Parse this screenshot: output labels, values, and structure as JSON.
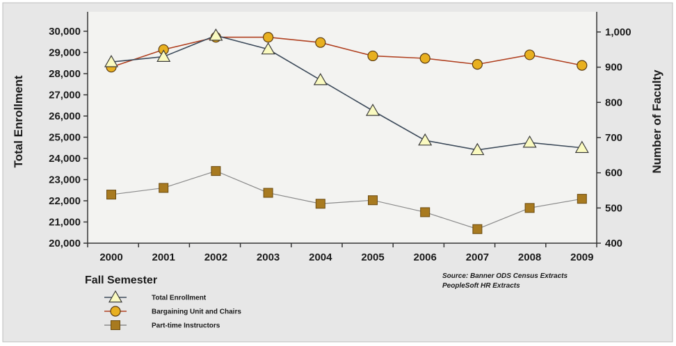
{
  "chart_data": {
    "type": "line",
    "categories": [
      "2000",
      "2001",
      "2002",
      "2003",
      "2004",
      "2005",
      "2006",
      "2007",
      "2008",
      "2009"
    ],
    "xlabel": "Fall Semester",
    "ylabel_left": "Total Enrollment",
    "ylabel_right": "Number of Faculty",
    "ylim_left": [
      20000,
      30000
    ],
    "ylim_right": [
      400,
      1000
    ],
    "yticks_left": [
      "20,000",
      "21,000",
      "22,000",
      "23,000",
      "24,000",
      "25,000",
      "26,000",
      "27,000",
      "28,000",
      "29,000",
      "30,000"
    ],
    "yticks_right": [
      "400",
      "500",
      "600",
      "700",
      "800",
      "900",
      "1,000"
    ],
    "grid": false,
    "legend_position": "bottom-left",
    "background_color": "#e7e7e7",
    "plot_background_color": "#f3f3f1",
    "series": [
      {
        "name": "Total Enrollment",
        "axis": "left",
        "marker": "triangle",
        "line_color": "#3c4a5a",
        "marker_color": "#fafac0",
        "values": [
          28550,
          28800,
          29800,
          29150,
          27700,
          26250,
          24850,
          24400,
          24750,
          24500
        ]
      },
      {
        "name": "Bargaining Unit and Chairs",
        "axis": "right",
        "marker": "circle",
        "line_color": "#b04020",
        "marker_color": "#e8b020",
        "values": [
          900,
          950,
          985,
          985,
          970,
          932,
          925,
          908,
          935,
          905
        ]
      },
      {
        "name": "Part-time Instructors",
        "axis": "right",
        "marker": "square",
        "line_color": "#8a8a8a",
        "marker_color": "#a87a20",
        "values": [
          538,
          557,
          605,
          543,
          512,
          522,
          488,
          440,
          500,
          526
        ]
      }
    ],
    "source_lines": [
      "Source: Banner ODS Census Extracts",
      "PeopleSoft HR Extracts"
    ]
  }
}
